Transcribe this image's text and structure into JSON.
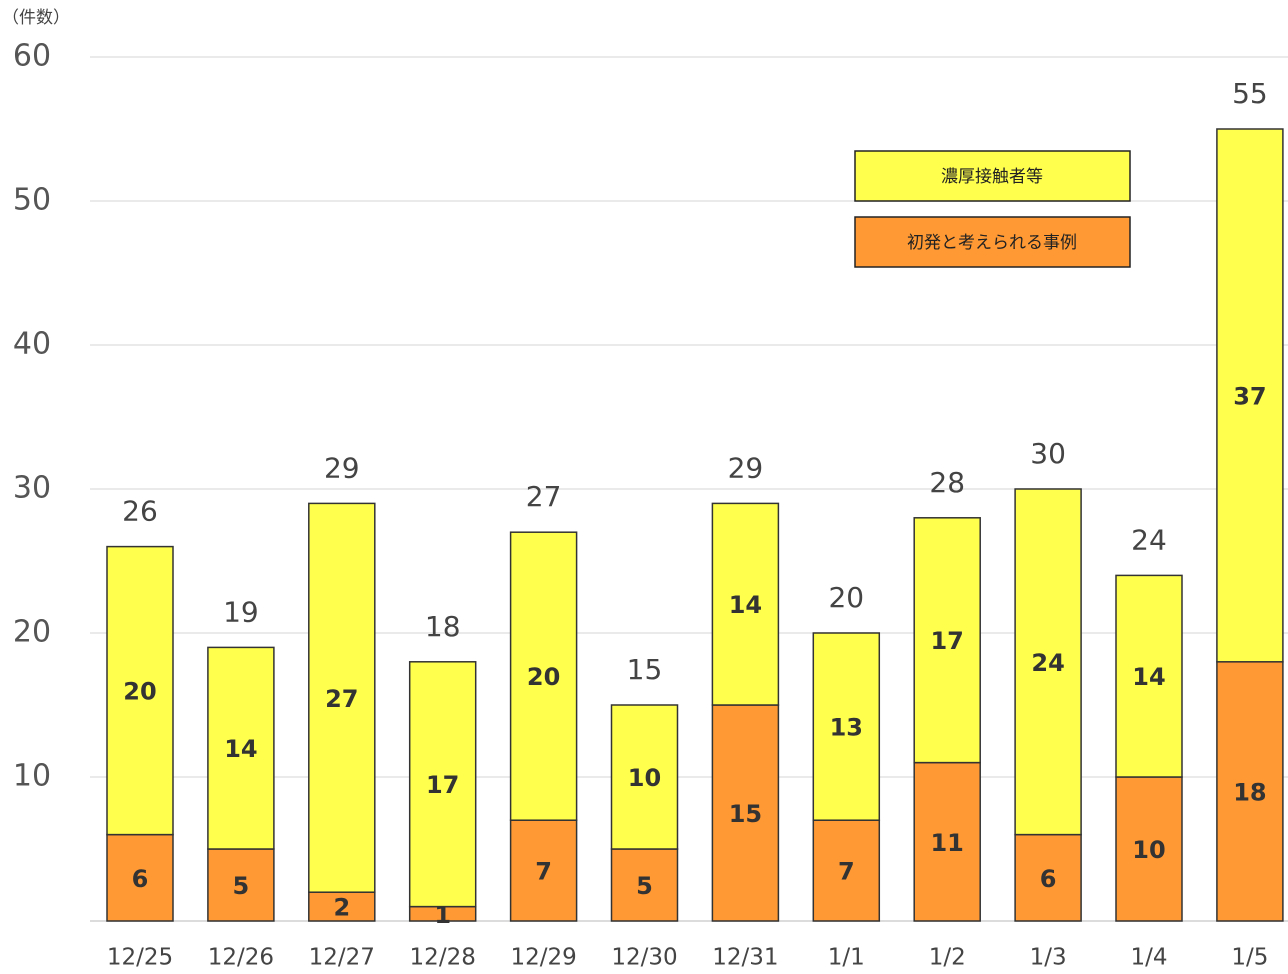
{
  "chart_data": {
    "type": "bar",
    "stacked": true,
    "y_label": "（件数）",
    "categories": [
      "12/25",
      "12/26",
      "12/27",
      "12/28",
      "12/29",
      "12/30",
      "12/31",
      "1/1",
      "1/2",
      "1/3",
      "1/4",
      "1/5"
    ],
    "series": [
      {
        "name": "初発と考えられる事例",
        "color": "#ff9933",
        "values": [
          6,
          5,
          2,
          1,
          7,
          5,
          15,
          7,
          11,
          6,
          10,
          18
        ]
      },
      {
        "name": "濃厚接触者等",
        "color": "#ffff4d",
        "values": [
          20,
          14,
          27,
          17,
          20,
          10,
          14,
          13,
          17,
          24,
          14,
          37
        ]
      }
    ],
    "totals": [
      26,
      19,
      29,
      18,
      27,
      15,
      29,
      20,
      28,
      30,
      24,
      55
    ],
    "ylim": [
      0,
      60
    ],
    "yticks": [
      10,
      20,
      30,
      40,
      50,
      60
    ],
    "grid": true
  }
}
